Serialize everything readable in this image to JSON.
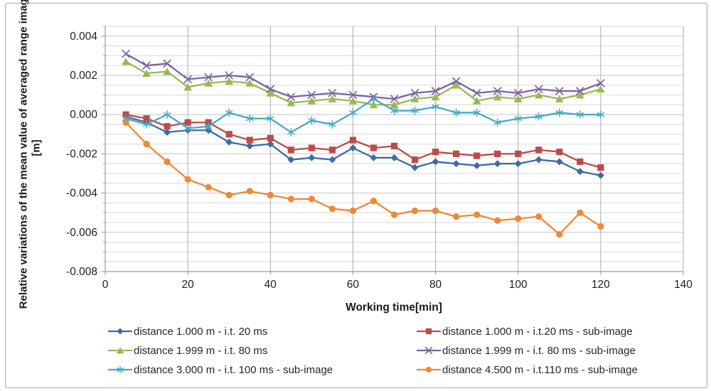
{
  "figure": {
    "border_color": "#a9a9a9",
    "background": "#ffffff"
  },
  "chart_data": {
    "type": "line",
    "title": "",
    "xlabel": "Working time[min]",
    "ylabel_line1": "Relative variations of the mean value of averaged range images",
    "ylabel_line2": "[m]",
    "xlim": [
      0,
      140
    ],
    "ylim": [
      -0.008,
      0.0045
    ],
    "xticks": [
      0,
      20,
      40,
      60,
      80,
      100,
      120,
      140
    ],
    "yticks": [
      0.004,
      0.002,
      0,
      -0.002,
      -0.004,
      -0.006,
      -0.008
    ],
    "ytick_labels": [
      "0.004",
      "0.002",
      "0.000",
      "-0.002",
      "-0.004",
      "-0.006",
      "-0.008"
    ],
    "minor_y_step": 0.0005,
    "grid": true,
    "legend_position": "bottom",
    "x": [
      5,
      10,
      15,
      20,
      25,
      30,
      35,
      40,
      45,
      50,
      55,
      60,
      65,
      70,
      75,
      80,
      85,
      90,
      95,
      100,
      105,
      110,
      115,
      120
    ],
    "series": [
      {
        "name": "distance 1.000 m - i.t. 20 ms",
        "color": "#3F6BA5",
        "marker": "diamond",
        "values": [
          -0.0001,
          -0.0004,
          -0.0009,
          -0.0008,
          -0.0008,
          -0.0014,
          -0.0016,
          -0.0015,
          -0.0023,
          -0.0022,
          -0.0023,
          -0.0017,
          -0.0022,
          -0.0022,
          -0.0027,
          -0.0024,
          -0.0025,
          -0.0026,
          -0.0025,
          -0.0025,
          -0.0023,
          -0.0024,
          -0.0029,
          -0.0031
        ]
      },
      {
        "name": "distance 1.000 m - i.t.20 ms - sub-image",
        "color": "#BE4B48",
        "marker": "square",
        "values": [
          0.0,
          -0.0002,
          -0.0006,
          -0.0004,
          -0.0004,
          -0.001,
          -0.0013,
          -0.0012,
          -0.0018,
          -0.0017,
          -0.0018,
          -0.0013,
          -0.0017,
          -0.0016,
          -0.0023,
          -0.0019,
          -0.002,
          -0.0021,
          -0.002,
          -0.002,
          -0.0018,
          -0.0019,
          -0.0024,
          -0.0027
        ]
      },
      {
        "name": "distance 1.999 m - i.t. 80 ms",
        "color": "#98B954",
        "marker": "triangle",
        "values": [
          0.0027,
          0.0021,
          0.0022,
          0.0014,
          0.0016,
          0.0017,
          0.0016,
          0.0011,
          0.0006,
          0.0007,
          0.0008,
          0.0007,
          0.0005,
          0.0005,
          0.0008,
          0.0009,
          0.0015,
          0.0007,
          0.0009,
          0.0008,
          0.001,
          0.0008,
          0.001,
          0.0013
        ]
      },
      {
        "name": "distance 1.999 m - i.t. 80 ms - sub-image",
        "color": "#7F63A1",
        "marker": "x",
        "values": [
          0.0031,
          0.0025,
          0.0026,
          0.0018,
          0.0019,
          0.002,
          0.0019,
          0.0013,
          0.0009,
          0.001,
          0.0011,
          0.001,
          0.0009,
          0.0008,
          0.0011,
          0.0012,
          0.0017,
          0.0011,
          0.0012,
          0.0011,
          0.0013,
          0.0012,
          0.0012,
          0.0016
        ]
      },
      {
        "name": "distance 3.000 m - i.t. 100 ms - sub-image",
        "color": "#46AAC5",
        "marker": "asterisk",
        "values": [
          -0.0002,
          -0.0005,
          0.0,
          -0.0007,
          -0.0006,
          0.0001,
          -0.0002,
          -0.0002,
          -0.0009,
          -0.0003,
          -0.0005,
          0.0001,
          0.0008,
          0.0002,
          0.0002,
          0.0004,
          0.0001,
          0.0001,
          -0.0004,
          -0.0002,
          -0.0001,
          0.0001,
          0.0,
          0.0
        ]
      },
      {
        "name": "distance 4.500 m - i.t.110 ms - sub-image",
        "color": "#EE8935",
        "marker": "circle",
        "values": [
          -0.0004,
          -0.0015,
          -0.0024,
          -0.0033,
          -0.0037,
          -0.0041,
          -0.0039,
          -0.0041,
          -0.0043,
          -0.0043,
          -0.0048,
          -0.0049,
          -0.0044,
          -0.0051,
          -0.0049,
          -0.0049,
          -0.0052,
          -0.0051,
          -0.0054,
          -0.0053,
          -0.0052,
          -0.0061,
          -0.005,
          -0.0057
        ]
      }
    ]
  }
}
